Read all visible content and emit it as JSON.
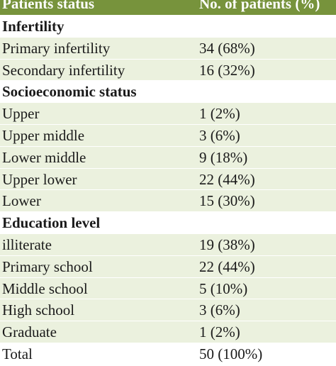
{
  "colors": {
    "header_bg": "#77933c",
    "row_bg": "#ebf1de",
    "section_bg": "#ffffff"
  },
  "table": {
    "header": [
      "Patients status",
      "No. of patients (%)"
    ],
    "rows": [
      {
        "kind": "section",
        "label": "Infertility",
        "value": ""
      },
      {
        "kind": "data",
        "label": "Primary infertility",
        "value": "34 (68%)"
      },
      {
        "kind": "data",
        "label": "Secondary infertility",
        "value": "16 (32%)"
      },
      {
        "kind": "section",
        "label": "Socioeconomic status",
        "value": ""
      },
      {
        "kind": "data",
        "label": "Upper",
        "value": "1 (2%)"
      },
      {
        "kind": "data",
        "label": "Upper middle",
        "value": "3 (6%)"
      },
      {
        "kind": "data",
        "label": "Lower middle",
        "value": "9 (18%)"
      },
      {
        "kind": "data",
        "label": "Upper lower",
        "value": "22 (44%)"
      },
      {
        "kind": "data",
        "label": "Lower",
        "value": "15 (30%)"
      },
      {
        "kind": "section",
        "label": "Education level",
        "value": ""
      },
      {
        "kind": "data",
        "label": "illiterate",
        "value": "19 (38%)"
      },
      {
        "kind": "data",
        "label": "Primary school",
        "value": "22 (44%)"
      },
      {
        "kind": "data",
        "label": "Middle school",
        "value": "5 (10%)"
      },
      {
        "kind": "data",
        "label": "High school",
        "value": "3 (6%)"
      },
      {
        "kind": "data",
        "label": "Graduate",
        "value": "1 (2%)"
      },
      {
        "kind": "total",
        "label": "Total",
        "value": "50 (100%)"
      }
    ]
  }
}
